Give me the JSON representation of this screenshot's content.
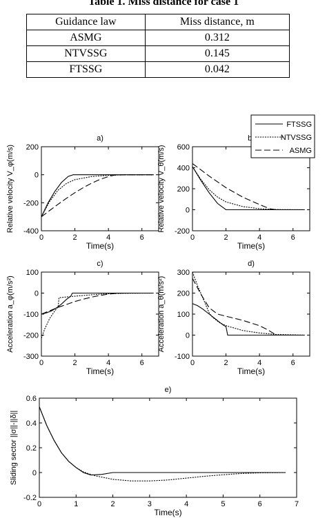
{
  "table": {
    "caption": "Table 1. Miss distance for case 1",
    "headers": [
      "Guidance law",
      "Miss distance, m"
    ],
    "rows": [
      [
        "ASMG",
        "0.312"
      ],
      [
        "NTVSSG",
        "0.145"
      ],
      [
        "FTSSG",
        "0.042"
      ]
    ]
  },
  "legend": [
    {
      "name": "FTSSG",
      "dash": "solid"
    },
    {
      "name": "NTVSSG",
      "dash": "dotted"
    },
    {
      "name": "ASMG",
      "dash": "long-dash"
    }
  ],
  "chart_data": [
    {
      "id": "a",
      "panel_label": "a)",
      "type": "line",
      "xlabel": "Time(s)",
      "ylabel": "Relative velocity V_φ(m/s)",
      "xlim": [
        0,
        7
      ],
      "ylim": [
        -400,
        200
      ],
      "xticks": [
        0,
        2,
        4,
        6
      ],
      "yticks": [
        -400,
        -200,
        0,
        200
      ],
      "series": [
        {
          "name": "FTSSG",
          "x": [
            0,
            0.4,
            0.8,
            1.2,
            1.6,
            1.9,
            2.2,
            6.7
          ],
          "y": [
            -300,
            -200,
            -120,
            -55,
            -12,
            0,
            0,
            0
          ]
        },
        {
          "name": "NTVSSG",
          "x": [
            0,
            0.5,
            1.0,
            1.5,
            2.0,
            3.0,
            4.0,
            5.0,
            6.7
          ],
          "y": [
            -300,
            -190,
            -110,
            -62,
            -35,
            -13,
            -4,
            -1,
            0
          ]
        },
        {
          "name": "ASMG",
          "x": [
            0,
            0.5,
            1.0,
            1.5,
            2.0,
            2.5,
            3.0,
            3.5,
            4.0,
            4.4,
            5.0,
            6.7
          ],
          "y": [
            -300,
            -255,
            -210,
            -168,
            -128,
            -92,
            -60,
            -33,
            -13,
            -2,
            0,
            0
          ]
        }
      ]
    },
    {
      "id": "b",
      "panel_label": "b)",
      "type": "line",
      "xlabel": "Time(s)",
      "ylabel": "Relative velocity V_θ(m/s)",
      "xlim": [
        0,
        7
      ],
      "ylim": [
        -200,
        600
      ],
      "xticks": [
        0,
        2,
        4,
        6
      ],
      "yticks": [
        -200,
        0,
        200,
        400,
        600
      ],
      "series": [
        {
          "name": "FTSSG",
          "x": [
            0,
            0.5,
            1.0,
            1.5,
            2.0,
            6.7
          ],
          "y": [
            410,
            280,
            160,
            60,
            0,
            0
          ]
        },
        {
          "name": "NTVSSG",
          "x": [
            0,
            0.5,
            1.0,
            1.5,
            2.0,
            3.0,
            4.0,
            5.0,
            6.7
          ],
          "y": [
            410,
            290,
            190,
            120,
            75,
            30,
            10,
            2,
            0
          ]
        },
        {
          "name": "ASMG",
          "x": [
            0,
            1.0,
            2.0,
            3.0,
            4.0,
            4.6,
            5.0,
            6.7
          ],
          "y": [
            440,
            320,
            210,
            120,
            50,
            10,
            0,
            0
          ]
        }
      ]
    },
    {
      "id": "c",
      "panel_label": "c)",
      "type": "line",
      "xlabel": "Time(s)",
      "ylabel": "Acceleration a_φ(m/s²)",
      "xlim": [
        0,
        7
      ],
      "ylim": [
        -300,
        100
      ],
      "xticks": [
        0,
        2,
        4,
        6
      ],
      "yticks": [
        -300,
        -200,
        -100,
        0,
        100
      ],
      "series": [
        {
          "name": "FTSSG",
          "x": [
            0,
            0.3,
            0.6,
            0.9,
            1.2,
            1.5,
            1.75,
            1.85,
            2.5,
            6.7
          ],
          "y": [
            -100,
            -94,
            -85,
            -70,
            -52,
            -30,
            -15,
            0,
            0,
            0
          ]
        },
        {
          "name": "NTVSSG",
          "x": [
            0,
            0.2,
            0.5,
            0.8,
            1.0,
            1.05,
            1.3,
            1.8,
            3.0,
            4.0,
            5.0,
            6.7
          ],
          "y": [
            -215,
            -170,
            -120,
            -85,
            -65,
            -22,
            -20,
            -16,
            -8,
            -3,
            -1,
            0
          ]
        },
        {
          "name": "ASMG",
          "x": [
            0,
            0.5,
            1.0,
            1.5,
            2.0,
            2.5,
            3.0,
            3.5,
            4.0,
            4.5,
            5.0,
            6.7
          ],
          "y": [
            -100,
            -84,
            -68,
            -54,
            -40,
            -29,
            -19,
            -11,
            -5,
            -1,
            0,
            0
          ]
        }
      ]
    },
    {
      "id": "d",
      "panel_label": "d)",
      "type": "line",
      "xlabel": "Time(s)",
      "ylabel": "Acceleration a_θ(m/s²)",
      "xlim": [
        0,
        7
      ],
      "ylim": [
        -100,
        300
      ],
      "xticks": [
        0,
        2,
        4,
        6
      ],
      "yticks": [
        -100,
        0,
        100,
        200,
        300
      ],
      "series": [
        {
          "name": "FTSSG",
          "x": [
            0,
            0.3,
            0.6,
            1.0,
            1.4,
            1.8,
            2.0,
            2.1,
            6.7
          ],
          "y": [
            150,
            140,
            125,
            100,
            75,
            50,
            40,
            0,
            0
          ]
        },
        {
          "name": "NTVSSG",
          "x": [
            0,
            0.3,
            0.6,
            1.0,
            1.2,
            1.6,
            2.0,
            3.0,
            4.0,
            5.0,
            6.7
          ],
          "y": [
            300,
            235,
            180,
            105,
            85,
            60,
            45,
            22,
            10,
            3,
            0
          ]
        },
        {
          "name": "ASMG",
          "x": [
            0,
            0.5,
            1.0,
            1.5,
            2.0,
            3.0,
            4.0,
            4.5,
            5.0,
            6.7
          ],
          "y": [
            270,
            195,
            130,
            100,
            90,
            70,
            45,
            25,
            0,
            0
          ]
        }
      ]
    },
    {
      "id": "e",
      "panel_label": "e)",
      "type": "line",
      "xlabel": "Time(s)",
      "ylabel": "Sliding sector ||σ||-||δ||",
      "xlim": [
        0,
        7
      ],
      "ylim": [
        -0.2,
        0.6
      ],
      "xticks": [
        0,
        1,
        2,
        3,
        4,
        5,
        6,
        7
      ],
      "yticks": [
        -0.2,
        0,
        0.2,
        0.4,
        0.6
      ],
      "series": [
        {
          "name": "FTSSG",
          "x": [
            0,
            0.2,
            0.4,
            0.6,
            0.8,
            1.0,
            1.2,
            1.4,
            1.7,
            2.0,
            3.0,
            6.7
          ],
          "y": [
            0.53,
            0.38,
            0.26,
            0.16,
            0.09,
            0.04,
            0.0,
            -0.02,
            -0.015,
            0.0,
            0.0,
            0.0
          ]
        },
        {
          "name": "NTVSSG",
          "x": [
            0,
            0.2,
            0.4,
            0.6,
            0.8,
            1.0,
            1.2,
            1.5,
            2.0,
            2.5,
            3.0,
            3.5,
            4.0,
            4.5,
            5.0,
            5.5,
            6.0,
            6.7
          ],
          "y": [
            0.53,
            0.38,
            0.26,
            0.16,
            0.09,
            0.04,
            0.005,
            -0.025,
            -0.055,
            -0.068,
            -0.068,
            -0.06,
            -0.045,
            -0.03,
            -0.018,
            -0.008,
            -0.002,
            0.0
          ]
        }
      ]
    }
  ]
}
